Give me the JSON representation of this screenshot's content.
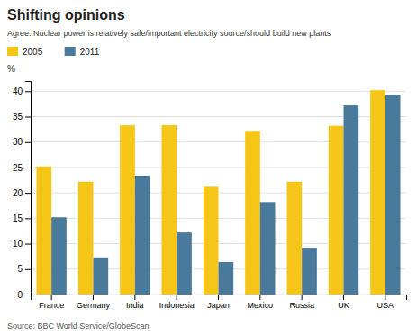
{
  "chart_data": {
    "type": "bar",
    "title": "Shifting opinions",
    "subtitle": "Agree: Nuclear power is relatively safe/important electricity source/should build new plants",
    "ylabel": "%",
    "annotations": [
      "Source: BBC World Service/GlobeScan"
    ],
    "categories": [
      "France",
      "Germany",
      "India",
      "Indonesia",
      "Japan",
      "Mexico",
      "Russia",
      "UK",
      "USA"
    ],
    "series": [
      {
        "name": "2005",
        "color": "#f5c518",
        "values": [
          25.2,
          22.2,
          33.3,
          33.3,
          21.2,
          32.2,
          22.2,
          33.2,
          40.2
        ]
      },
      {
        "name": "2011",
        "color": "#4a7a9b",
        "values": [
          15.2,
          7.3,
          23.4,
          12.2,
          6.4,
          18.2,
          9.2,
          37.2,
          39.3
        ]
      }
    ],
    "ylim": [
      0,
      42
    ],
    "yticks": [
      0,
      5,
      10,
      15,
      20,
      25,
      30,
      35,
      40
    ],
    "grid": true,
    "legend": "upper left"
  }
}
